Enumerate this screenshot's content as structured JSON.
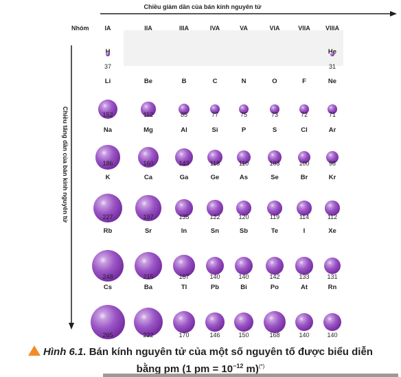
{
  "top_arrow_label": "Chiều giảm dần của bán kính nguyên tử",
  "left_arrow_label": "Chiều tăng dần của bán kính nguyên tử",
  "group_header": "Nhóm",
  "groups": [
    "IA",
    "IIA",
    "IIIA",
    "IVA",
    "VA",
    "VIA",
    "VIIA",
    "VIIIA"
  ],
  "elements": [
    {
      "symbol": "H",
      "radius": "37"
    },
    {
      "symbol": "He",
      "radius": "31"
    },
    {
      "symbol": "Li",
      "radius": "152"
    },
    {
      "symbol": "Be",
      "radius": "112"
    },
    {
      "symbol": "B",
      "radius": "85"
    },
    {
      "symbol": "C",
      "radius": "77"
    },
    {
      "symbol": "N",
      "radius": "75"
    },
    {
      "symbol": "O",
      "radius": "73"
    },
    {
      "symbol": "F",
      "radius": "72"
    },
    {
      "symbol": "Ne",
      "radius": "71"
    },
    {
      "symbol": "Na",
      "radius": "186"
    },
    {
      "symbol": "Mg",
      "radius": "160"
    },
    {
      "symbol": "Al",
      "radius": "143"
    },
    {
      "symbol": "Si",
      "radius": "118"
    },
    {
      "symbol": "P",
      "radius": "110"
    },
    {
      "symbol": "S",
      "radius": "103"
    },
    {
      "symbol": "Cl",
      "radius": "100"
    },
    {
      "symbol": "Ar",
      "radius": "98"
    },
    {
      "symbol": "K",
      "radius": "227"
    },
    {
      "symbol": "Ca",
      "radius": "197"
    },
    {
      "symbol": "Ga",
      "radius": "135"
    },
    {
      "symbol": "Ge",
      "radius": "122"
    },
    {
      "symbol": "As",
      "radius": "120"
    },
    {
      "symbol": "Se",
      "radius": "119"
    },
    {
      "symbol": "Br",
      "radius": "114"
    },
    {
      "symbol": "Kr",
      "radius": "112"
    },
    {
      "symbol": "Rb",
      "radius": "248"
    },
    {
      "symbol": "Sr",
      "radius": "215"
    },
    {
      "symbol": "In",
      "radius": "167"
    },
    {
      "symbol": "Sn",
      "radius": "140"
    },
    {
      "symbol": "Sb",
      "radius": "140"
    },
    {
      "symbol": "Te",
      "radius": "142"
    },
    {
      "symbol": "I",
      "radius": "133"
    },
    {
      "symbol": "Xe",
      "radius": "131"
    },
    {
      "symbol": "Cs",
      "radius": "265"
    },
    {
      "symbol": "Ba",
      "radius": "222"
    },
    {
      "symbol": "Tl",
      "radius": "170"
    },
    {
      "symbol": "Pb",
      "radius": "146"
    },
    {
      "symbol": "Bi",
      "radius": "150"
    },
    {
      "symbol": "Po",
      "radius": "168"
    },
    {
      "symbol": "At",
      "radius": "140"
    },
    {
      "symbol": "Rn",
      "radius": "140"
    }
  ],
  "caption": {
    "figure": "Hình 6.1.",
    "line1": "Bán kính nguyên tử của một số nguyên tố được biểu diễn",
    "line2_a": "bằng pm (1 pm = 10",
    "line2_exp": "−12",
    "line2_b": " m)",
    "note": "(*)"
  },
  "colors": {
    "sphere": "#7a31a6",
    "caption_icon": "#f28c28"
  }
}
